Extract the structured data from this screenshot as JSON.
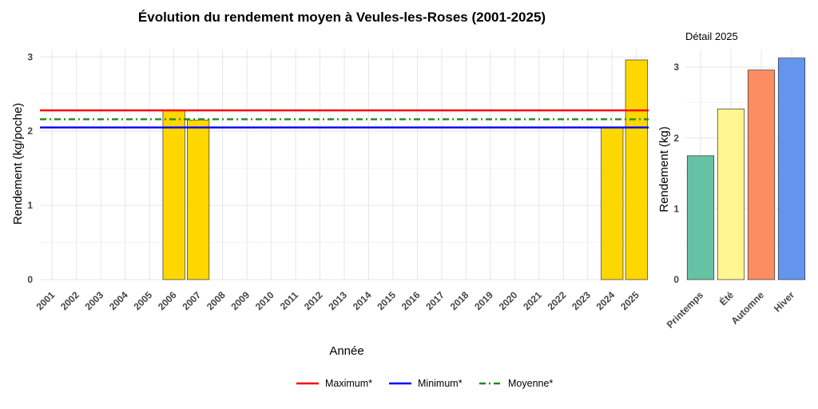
{
  "chart_data": [
    {
      "type": "bar",
      "title": "Évolution du rendement moyen à Veules-les-Roses (2001-2025)",
      "xlabel": "Année",
      "ylabel": "Rendement (kg/poche)",
      "ylim": [
        0,
        3.1
      ],
      "yticks": [
        "0",
        "1",
        "2",
        "3"
      ],
      "grid": true,
      "categories": [
        "2001",
        "2002",
        "2003",
        "2004",
        "2005",
        "2006",
        "2007",
        "2008",
        "2009",
        "2010",
        "2011",
        "2012",
        "2013",
        "2014",
        "2015",
        "2016",
        "2017",
        "2018",
        "2019",
        "2020",
        "2021",
        "2022",
        "2023",
        "2024",
        "2025"
      ],
      "values": [
        null,
        null,
        null,
        null,
        null,
        2.28,
        2.15,
        null,
        null,
        null,
        null,
        null,
        null,
        null,
        null,
        null,
        null,
        null,
        null,
        null,
        null,
        null,
        null,
        2.05,
        2.96
      ],
      "bar_color": "#FFD700",
      "reference_lines": [
        {
          "name": "Maximum*",
          "value": 2.28,
          "color": "#FF0000",
          "style": "solid"
        },
        {
          "name": "Minimum*",
          "value": 2.05,
          "color": "#0000FF",
          "style": "solid"
        },
        {
          "name": "Moyenne*",
          "value": 2.16,
          "color": "#228B22",
          "style": "dashdot"
        }
      ],
      "legend_position": "bottom"
    },
    {
      "type": "bar",
      "title": "Détail 2025",
      "xlabel": "",
      "ylabel": "Rendement (kg)",
      "ylim": [
        0,
        3.25
      ],
      "yticks": [
        "0",
        "1",
        "2",
        "3"
      ],
      "grid": true,
      "categories": [
        "Printemps",
        "Été",
        "Automne",
        "Hiver"
      ],
      "values": [
        1.75,
        2.41,
        2.96,
        3.13
      ],
      "colors": [
        "#66C2A5",
        "#FFF68F",
        "#FC8D62",
        "#6495ED"
      ]
    }
  ]
}
